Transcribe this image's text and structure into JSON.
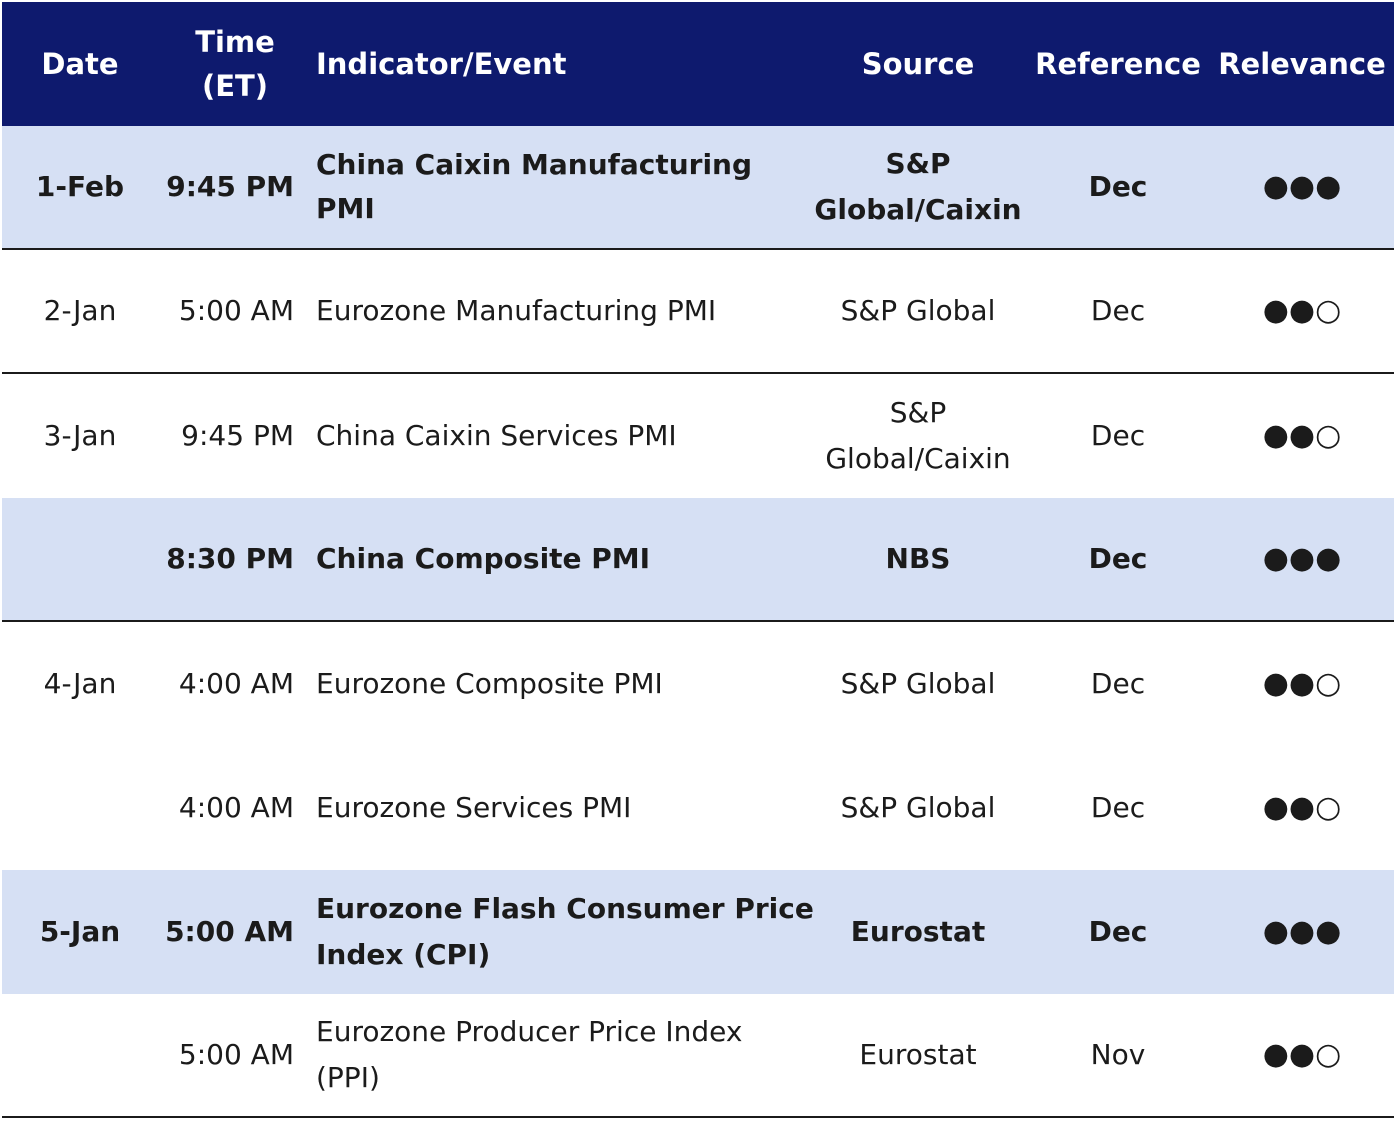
{
  "header": {
    "date": "Date",
    "time": "Time (ET)",
    "event": "Indicator/Event",
    "source": "Source",
    "reference": "Reference",
    "relevance": "Relevance"
  },
  "rows": [
    {
      "date": "1-Feb",
      "time": "9:45 PM",
      "event": "China Caixin Manufacturing PMI",
      "source": "S&P Global/Caixin",
      "reference": "Dec",
      "relevance": "●●●",
      "relevance_level": 3,
      "highlighted": true,
      "bold": true
    },
    {
      "date": "2-Jan",
      "time": "5:00 AM",
      "event": "Eurozone Manufacturing PMI",
      "source": "S&P Global",
      "reference": "Dec",
      "relevance": "●●○",
      "relevance_level": 2,
      "highlighted": false,
      "bold": false
    },
    {
      "date": "3-Jan",
      "time": "9:45 PM",
      "event": "China Caixin Services PMI",
      "source": "S&P Global/Caixin",
      "reference": "Dec",
      "relevance": "●●○",
      "relevance_level": 2,
      "highlighted": false,
      "bold": false
    },
    {
      "date": "",
      "time": "8:30 PM",
      "event": "China Composite PMI",
      "source": "NBS",
      "reference": "Dec",
      "relevance": "●●●",
      "relevance_level": 3,
      "highlighted": true,
      "bold": true
    },
    {
      "date": "4-Jan",
      "time": "4:00 AM",
      "event": "Eurozone Composite PMI",
      "source": "S&P Global",
      "reference": "Dec",
      "relevance": "●●○",
      "relevance_level": 2,
      "highlighted": false,
      "bold": false
    },
    {
      "date": "",
      "time": "4:00 AM",
      "event": "Eurozone Services PMI",
      "source": "S&P Global",
      "reference": "Dec",
      "relevance": "●●○",
      "relevance_level": 2,
      "highlighted": false,
      "bold": false
    },
    {
      "date": "5-Jan",
      "time": "5:00 AM",
      "event": "Eurozone Flash Consumer Price Index (CPI)",
      "source": "Eurostat",
      "reference": "Dec",
      "relevance": "●●●",
      "relevance_level": 3,
      "highlighted": true,
      "bold": true
    },
    {
      "date": "",
      "time": "5:00 AM",
      "event": "Eurozone Producer Price Index (PPI)",
      "source": "Eurostat",
      "reference": "Nov",
      "relevance": "●●○",
      "relevance_level": 2,
      "highlighted": false,
      "bold": false
    }
  ],
  "colors": {
    "header_bg": "#0e1a6e",
    "highlight_bg": "#d6e0f4",
    "text": "#1b1b1b"
  }
}
